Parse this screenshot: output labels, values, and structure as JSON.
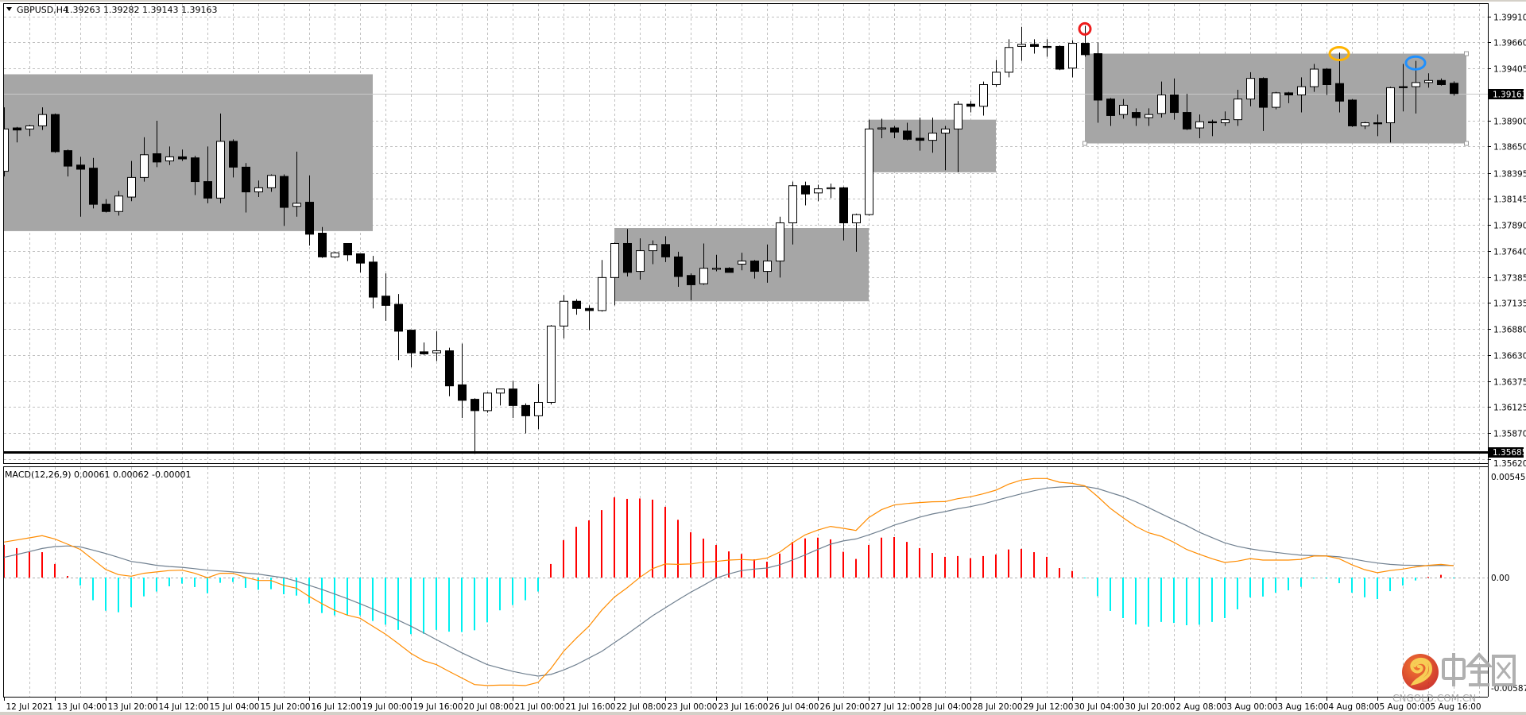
{
  "header": {
    "symbol": "GBPUSD,H4",
    "ohlc": "1.39263 1.39282 1.39143 1.39163"
  },
  "macd_header": {
    "label": "MACD(12,26,9) 0.00061 0.00062 -0.00001"
  },
  "colors": {
    "rect": "#a6a6a6",
    "hist_pos": "#ff0000",
    "hist_neg": "#00f0f0",
    "macd_line": "#ff8c00",
    "signal_line": "#708090",
    "grid": "#c0c0c0",
    "circle_red": "#ee1c1c",
    "circle_orange": "#ffb400",
    "circle_blue": "#1e90ff"
  },
  "price_axis": {
    "ticks": [
      "1.39910",
      "1.39660",
      "1.39405",
      "1.38900",
      "1.38650",
      "1.38395",
      "1.38145",
      "1.37890",
      "1.37640",
      "1.37385",
      "1.37135",
      "1.36880",
      "1.36630",
      "1.36375",
      "1.36125",
      "1.35870",
      "1.35620"
    ],
    "current_price": "1.39163",
    "hline_price": "1.35685"
  },
  "macd_axis": {
    "ticks": [
      "0.00545",
      "0.00",
      "-0.00587"
    ]
  },
  "time_axis": {
    "labels": [
      "12 Jul 2021",
      "13 Jul 04:00",
      "13 Jul 20:00",
      "14 Jul 12:00",
      "15 Jul 04:00",
      "15 Jul 20:00",
      "16 Jul 12:00",
      "19 Jul 00:00",
      "19 Jul 16:00",
      "20 Jul 08:00",
      "21 Jul 00:00",
      "21 Jul 16:00",
      "22 Jul 08:00",
      "23 Jul 00:00",
      "23 Jul 16:00",
      "26 Jul 04:00",
      "26 Jul 20:00",
      "27 Jul 12:00",
      "28 Jul 04:00",
      "28 Jul 20:00",
      "29 Jul 12:00",
      "30 Jul 04:00",
      "30 Jul 20:00",
      "2 Aug 08:00",
      "3 Aug 00:00",
      "3 Aug 16:00",
      "4 Aug 08:00",
      "5 Aug 00:00",
      "5 Aug 16:00"
    ]
  },
  "rectangles": [
    {
      "start_bar": 0,
      "end_bar": 29,
      "high": 1.3935,
      "low": 1.3783
    },
    {
      "start_bar": 48,
      "end_bar": 68,
      "high": 1.3786,
      "low": 1.3715
    },
    {
      "start_bar": 68,
      "end_bar": 78,
      "high": 1.3891,
      "low": 1.384
    },
    {
      "start_bar": 85,
      "end_bar": 115,
      "high": 1.3955,
      "low": 1.3868
    }
  ],
  "markers": [
    {
      "bar": 85,
      "price": 1.3979,
      "color": "#ee1c1c",
      "shape": "circle"
    },
    {
      "bar": 105,
      "price": 1.3955,
      "color": "#ffb400",
      "shape": "ellipse"
    },
    {
      "bar": 111,
      "price": 1.3946,
      "color": "#1e90ff",
      "shape": "ellipse"
    }
  ],
  "chart_data": {
    "type": "candlestick",
    "title": "GBPUSD,H4",
    "ylim": [
      1.3562,
      1.3991
    ],
    "candles": [
      [
        1.3841,
        1.3903,
        1.3836,
        1.3882
      ],
      [
        1.3883,
        1.3884,
        1.3869,
        1.3881
      ],
      [
        1.3882,
        1.3886,
        1.3875,
        1.3885
      ],
      [
        1.3885,
        1.3903,
        1.3881,
        1.3896
      ],
      [
        1.3896,
        1.3897,
        1.3859,
        1.386
      ],
      [
        1.3861,
        1.3862,
        1.3836,
        1.3846
      ],
      [
        1.3847,
        1.3855,
        1.3797,
        1.3843
      ],
      [
        1.3844,
        1.3854,
        1.3805,
        1.3809
      ],
      [
        1.3809,
        1.3814,
        1.3801,
        1.3802
      ],
      [
        1.3802,
        1.3822,
        1.3798,
        1.3817
      ],
      [
        1.3816,
        1.3851,
        1.3812,
        1.3835
      ],
      [
        1.3835,
        1.3874,
        1.3831,
        1.3857
      ],
      [
        1.3858,
        1.389,
        1.3845,
        1.385
      ],
      [
        1.3851,
        1.3865,
        1.3847,
        1.3855
      ],
      [
        1.3855,
        1.3862,
        1.3851,
        1.3853
      ],
      [
        1.3854,
        1.3856,
        1.3818,
        1.3831
      ],
      [
        1.3831,
        1.3865,
        1.381,
        1.3815
      ],
      [
        1.3815,
        1.3897,
        1.381,
        1.387
      ],
      [
        1.387,
        1.3872,
        1.3835,
        1.3845
      ],
      [
        1.3845,
        1.3849,
        1.3801,
        1.3821
      ],
      [
        1.3821,
        1.3832,
        1.3816,
        1.3825
      ],
      [
        1.3825,
        1.3838,
        1.3821,
        1.3837
      ],
      [
        1.3836,
        1.3838,
        1.3788,
        1.3806
      ],
      [
        1.3807,
        1.386,
        1.3797,
        1.381
      ],
      [
        1.3811,
        1.3837,
        1.3769,
        1.378
      ],
      [
        1.3781,
        1.3787,
        1.3757,
        1.3758
      ],
      [
        1.3758,
        1.3763,
        1.3757,
        1.3762
      ],
      [
        1.3771,
        1.3771,
        1.3754,
        1.376
      ],
      [
        1.3761,
        1.3761,
        1.3743,
        1.3752
      ],
      [
        1.3753,
        1.3759,
        1.3708,
        1.3719
      ],
      [
        1.372,
        1.3742,
        1.3696,
        1.3711
      ],
      [
        1.3712,
        1.3722,
        1.3658,
        1.3686
      ],
      [
        1.3687,
        1.3687,
        1.3651,
        1.3665
      ],
      [
        1.3666,
        1.3675,
        1.3663,
        1.3664
      ],
      [
        1.3665,
        1.3686,
        1.3657,
        1.3667
      ],
      [
        1.3667,
        1.367,
        1.3623,
        1.3633
      ],
      [
        1.3634,
        1.3674,
        1.3602,
        1.3619
      ],
      [
        1.362,
        1.3621,
        1.3567,
        1.3609
      ],
      [
        1.3609,
        1.3627,
        1.3607,
        1.3626
      ],
      [
        1.3626,
        1.363,
        1.3614,
        1.363
      ],
      [
        1.363,
        1.3638,
        1.3602,
        1.3614
      ],
      [
        1.3614,
        1.3616,
        1.3587,
        1.3604
      ],
      [
        1.3604,
        1.3635,
        1.3591,
        1.3617
      ],
      [
        1.3617,
        1.3692,
        1.3615,
        1.3691
      ],
      [
        1.3691,
        1.3721,
        1.3679,
        1.3715
      ],
      [
        1.3715,
        1.3717,
        1.3702,
        1.3708
      ],
      [
        1.3708,
        1.3711,
        1.3687,
        1.3706
      ],
      [
        1.3706,
        1.3755,
        1.3705,
        1.3738
      ],
      [
        1.3738,
        1.3772,
        1.3711,
        1.3771
      ],
      [
        1.3771,
        1.3785,
        1.3739,
        1.3743
      ],
      [
        1.3744,
        1.3776,
        1.3736,
        1.3764
      ],
      [
        1.3764,
        1.3774,
        1.3751,
        1.377
      ],
      [
        1.377,
        1.3778,
        1.3753,
        1.3758
      ],
      [
        1.3758,
        1.3763,
        1.3729,
        1.3739
      ],
      [
        1.374,
        1.3742,
        1.3716,
        1.3731
      ],
      [
        1.3732,
        1.3771,
        1.3731,
        1.3747
      ],
      [
        1.3746,
        1.376,
        1.3744,
        1.3747
      ],
      [
        1.3747,
        1.3748,
        1.3743,
        1.3743
      ],
      [
        1.3751,
        1.3762,
        1.3745,
        1.3754
      ],
      [
        1.3754,
        1.3755,
        1.3737,
        1.3744
      ],
      [
        1.3744,
        1.377,
        1.3733,
        1.3754
      ],
      [
        1.3754,
        1.3797,
        1.3738,
        1.3791
      ],
      [
        1.3791,
        1.3831,
        1.377,
        1.3827
      ],
      [
        1.3827,
        1.3831,
        1.3808,
        1.3819
      ],
      [
        1.382,
        1.3828,
        1.3812,
        1.3824
      ],
      [
        1.3824,
        1.3829,
        1.3815,
        1.3825
      ],
      [
        1.3825,
        1.3826,
        1.3774,
        1.3791
      ],
      [
        1.3791,
        1.38,
        1.3763,
        1.3799
      ],
      [
        1.3799,
        1.3891,
        1.3798,
        1.3882
      ],
      [
        1.3882,
        1.3892,
        1.3873,
        1.3883
      ],
      [
        1.3883,
        1.3885,
        1.3873,
        1.3879
      ],
      [
        1.388,
        1.3888,
        1.3871,
        1.3872
      ],
      [
        1.3873,
        1.3893,
        1.3861,
        1.3871
      ],
      [
        1.3871,
        1.3893,
        1.3859,
        1.3878
      ],
      [
        1.3878,
        1.3885,
        1.3842,
        1.3882
      ],
      [
        1.3882,
        1.3909,
        1.384,
        1.3906
      ],
      [
        1.3906,
        1.3909,
        1.3898,
        1.3904
      ],
      [
        1.3904,
        1.3928,
        1.3895,
        1.3925
      ],
      [
        1.3925,
        1.3949,
        1.3923,
        1.3937
      ],
      [
        1.3937,
        1.3969,
        1.3932,
        1.3961
      ],
      [
        1.3962,
        1.3981,
        1.3948,
        1.3964
      ],
      [
        1.3964,
        1.3969,
        1.3955,
        1.3962
      ],
      [
        1.3962,
        1.3969,
        1.3952,
        1.3961
      ],
      [
        1.3962,
        1.3963,
        1.3939,
        1.394
      ],
      [
        1.3941,
        1.3968,
        1.3932,
        1.3965
      ],
      [
        1.3965,
        1.3982,
        1.3952,
        1.3954
      ],
      [
        1.3955,
        1.3966,
        1.3888,
        1.391
      ],
      [
        1.3911,
        1.3912,
        1.3885,
        1.3895
      ],
      [
        1.3896,
        1.3911,
        1.3892,
        1.3905
      ],
      [
        1.3898,
        1.3902,
        1.3885,
        1.3893
      ],
      [
        1.3893,
        1.3902,
        1.3885,
        1.3896
      ],
      [
        1.3897,
        1.3928,
        1.3893,
        1.3915
      ],
      [
        1.3915,
        1.3931,
        1.3891,
        1.3898
      ],
      [
        1.3898,
        1.3916,
        1.3881,
        1.3882
      ],
      [
        1.3883,
        1.3896,
        1.3873,
        1.3889
      ],
      [
        1.3889,
        1.3891,
        1.3875,
        1.3888
      ],
      [
        1.3888,
        1.3899,
        1.3885,
        1.3891
      ],
      [
        1.3891,
        1.392,
        1.3885,
        1.3911
      ],
      [
        1.3911,
        1.3937,
        1.3904,
        1.3931
      ],
      [
        1.3931,
        1.3932,
        1.388,
        1.3903
      ],
      [
        1.3903,
        1.3918,
        1.3901,
        1.3917
      ],
      [
        1.3917,
        1.3918,
        1.3907,
        1.3915
      ],
      [
        1.3915,
        1.3932,
        1.3898,
        1.3923
      ],
      [
        1.3923,
        1.3945,
        1.3918,
        1.394
      ],
      [
        1.394,
        1.3941,
        1.3915,
        1.3925
      ],
      [
        1.3926,
        1.3956,
        1.3898,
        1.3909
      ],
      [
        1.391,
        1.3911,
        1.3884,
        1.3885
      ],
      [
        1.3885,
        1.3889,
        1.3882,
        1.3888
      ],
      [
        1.3888,
        1.3896,
        1.3875,
        1.3887
      ],
      [
        1.3888,
        1.3923,
        1.3869,
        1.3922
      ],
      [
        1.3923,
        1.3945,
        1.3899,
        1.3922
      ],
      [
        1.3923,
        1.3948,
        1.3897,
        1.3927
      ],
      [
        1.3927,
        1.3936,
        1.3922,
        1.3929
      ],
      [
        1.3929,
        1.3931,
        1.3924,
        1.3925
      ],
      [
        1.39263,
        1.39282,
        1.39143,
        1.39163
      ]
    ],
    "macd": {
      "name": "MACD(12,26,9)",
      "ylim": [
        -0.00587,
        0.00545
      ],
      "histogram": [
        0.00169,
        0.00152,
        0.00135,
        0.00131,
        0.0007,
        8e-05,
        -0.00041,
        -0.00117,
        -0.00171,
        -0.00179,
        -0.00152,
        -0.00097,
        -0.00072,
        -0.00045,
        -0.00031,
        -0.00049,
        -0.00081,
        -0.00027,
        -0.00023,
        -0.00053,
        -0.00063,
        -0.0006,
        -0.00086,
        -0.00093,
        -0.00134,
        -0.00183,
        -0.00195,
        -0.00194,
        -0.00195,
        -0.00224,
        -0.00243,
        -0.0027,
        -0.00292,
        -0.0029,
        -0.0027,
        -0.00279,
        -0.00281,
        -0.00272,
        -0.00231,
        -0.00169,
        -0.00142,
        -0.00117,
        -0.00072,
        0.0007,
        0.00193,
        0.00262,
        0.00295,
        0.00348,
        0.00414,
        0.00406,
        0.00408,
        0.00402,
        0.00365,
        0.00298,
        0.00234,
        0.00201,
        0.00168,
        0.00135,
        0.00122,
        0.00094,
        0.00082,
        0.00124,
        0.00184,
        0.00202,
        0.00206,
        0.00197,
        0.00133,
        0.00096,
        0.00168,
        0.00206,
        0.00209,
        0.00184,
        0.00152,
        0.00127,
        0.00107,
        0.00111,
        0.001,
        0.00111,
        0.00119,
        0.00145,
        0.00148,
        0.00131,
        0.00107,
        0.00049,
        0.00034,
        -1e-05,
        -0.00096,
        -0.00172,
        -0.00209,
        -0.00242,
        -0.00253,
        -0.00229,
        -0.00234,
        -0.00246,
        -0.00243,
        -0.00229,
        -0.00209,
        -0.00164,
        -0.00102,
        -0.00098,
        -0.00078,
        -0.00066,
        -0.00048,
        -5e-05,
        -5e-05,
        -0.00029,
        -0.00078,
        -0.00102,
        -0.00111,
        -0.0007,
        -0.00041,
        -0.00015,
        4e-05,
        0.00014,
        -1e-05
      ],
      "main": [
        0.00183,
        0.00194,
        0.00205,
        0.00216,
        0.00199,
        0.00172,
        0.00145,
        0.00093,
        0.00042,
        0.00015,
        7e-05,
        0.00022,
        0.00029,
        0.00036,
        0.00038,
        0.00022,
        -1e-05,
        0.00022,
        0.00022,
        1e-05,
        -0.00015,
        -0.00015,
        -0.0004,
        -0.00055,
        -0.00097,
        -0.00135,
        -0.00169,
        -0.00194,
        -0.0021,
        -0.00251,
        -0.00292,
        -0.0034,
        -0.00391,
        -0.00429,
        -0.00449,
        -0.00484,
        -0.00518,
        -0.00552,
        -0.00557,
        -0.00555,
        -0.00555,
        -0.00557,
        -0.00541,
        -0.0047,
        -0.00381,
        -0.00313,
        -0.00251,
        -0.00169,
        -0.00101,
        -0.00053,
        1e-05,
        0.00046,
        0.0007,
        0.00068,
        0.0007,
        0.00079,
        0.00083,
        0.0009,
        0.00093,
        0.0009,
        0.00101,
        0.00131,
        0.00179,
        0.0022,
        0.00245,
        0.00264,
        0.00254,
        0.00243,
        0.00309,
        0.0035,
        0.00374,
        0.00382,
        0.00387,
        0.00391,
        0.00392,
        0.00407,
        0.00417,
        0.00432,
        0.00451,
        0.00482,
        0.00503,
        0.00511,
        0.00511,
        0.00492,
        0.00486,
        0.00473,
        0.00418,
        0.00357,
        0.00309,
        0.00264,
        0.00231,
        0.00213,
        0.00182,
        0.00145,
        0.0012,
        0.00097,
        0.00078,
        0.00085,
        0.00098,
        0.0009,
        0.0009,
        0.0009,
        0.00094,
        0.00111,
        0.00111,
        0.00097,
        0.00066,
        0.00041,
        0.00025,
        0.00036,
        0.00044,
        0.00055,
        0.00063,
        0.00068,
        0.00061
      ],
      "signal": [
        0.00104,
        0.00119,
        0.00134,
        0.0015,
        0.0016,
        0.00163,
        0.00158,
        0.00142,
        0.00124,
        0.00104,
        0.00083,
        0.00074,
        0.00063,
        0.00057,
        0.00053,
        0.00046,
        0.00038,
        0.00034,
        0.00029,
        0.00023,
        0.00018,
        8e-05,
        -1e-05,
        -0.00019,
        -0.0004,
        -0.00061,
        -0.00085,
        -0.00109,
        -0.00135,
        -0.00162,
        -0.0019,
        -0.0022,
        -0.00251,
        -0.00285,
        -0.0032,
        -0.00354,
        -0.00388,
        -0.00419,
        -0.00449,
        -0.00467,
        -0.00484,
        -0.00497,
        -0.00508,
        -0.005,
        -0.00477,
        -0.00449,
        -0.00415,
        -0.00381,
        -0.00336,
        -0.00292,
        -0.00245,
        -0.00197,
        -0.00156,
        -0.00115,
        -0.00076,
        -0.0004,
        -3e-05,
        0.00019,
        0.00036,
        0.00044,
        0.00049,
        0.00066,
        0.0009,
        0.00117,
        0.00145,
        0.00172,
        0.00189,
        0.00199,
        0.0022,
        0.00243,
        0.0027,
        0.0029,
        0.00311,
        0.00328,
        0.0034,
        0.00355,
        0.00366,
        0.0038,
        0.00398,
        0.00415,
        0.00432,
        0.00448,
        0.00462,
        0.00467,
        0.0047,
        0.0047,
        0.00459,
        0.00438,
        0.00418,
        0.00391,
        0.00361,
        0.00329,
        0.00298,
        0.00268,
        0.00234,
        0.00206,
        0.00179,
        0.00161,
        0.00148,
        0.00138,
        0.0013,
        0.00122,
        0.00115,
        0.00113,
        0.00112,
        0.00107,
        0.00097,
        0.00085,
        0.00075,
        0.00068,
        0.00064,
        0.00063,
        0.00061,
        0.00063,
        0.00062
      ]
    }
  },
  "watermark": {
    "name": "中金网",
    "domain": "CNGOLD.COM.CN",
    "tagline": "中文财经新媒体"
  }
}
